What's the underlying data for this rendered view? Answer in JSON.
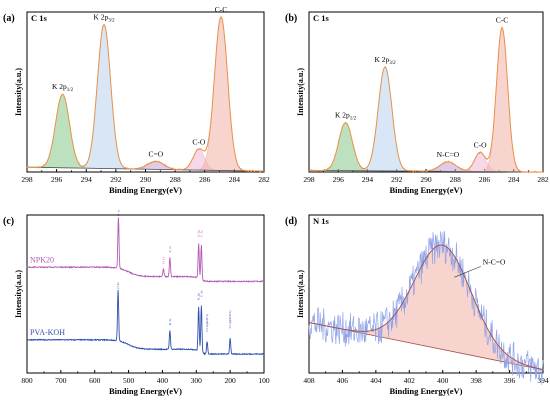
{
  "chart_data": [
    {
      "panel_label": "(a)",
      "type": "line",
      "inner_label": "C 1s",
      "xlabel": "Binding Energy(eV)",
      "ylabel": "Intensity(a.u.)",
      "xlim": [
        298,
        282
      ],
      "x_ticks": [
        "298",
        "296",
        "294",
        "292",
        "290",
        "288",
        "286",
        "284",
        "282"
      ],
      "ylim": [
        0,
        1
      ],
      "peaks": [
        {
          "label": "K 2p1/2",
          "center": 295.6,
          "fwhm": 1.1,
          "height": 0.46,
          "color": "#86c98a"
        },
        {
          "label": "K 2p3/2",
          "center": 292.8,
          "fwhm": 1.05,
          "height": 0.9,
          "color": "#b9d2ee"
        },
        {
          "label": "C=O",
          "center": 289.3,
          "fwhm": 1.3,
          "height": 0.05,
          "color": "#c7a2d6"
        },
        {
          "label": "C-O",
          "center": 286.4,
          "fwhm": 0.9,
          "height": 0.13,
          "color": "#f0b6d6"
        },
        {
          "label": "C-C",
          "center": 284.9,
          "fwhm": 1.05,
          "height": 0.96,
          "color": "#f3b0a6"
        }
      ],
      "baseline": [
        0.03,
        0.005
      ]
    },
    {
      "panel_label": "(b)",
      "type": "line",
      "inner_label": "C 1s",
      "xlabel": "Binding Energy(eV)",
      "ylabel": "Intensity(a.u.)",
      "xlim": [
        298,
        282
      ],
      "x_ticks": [
        "298",
        "296",
        "294",
        "292",
        "290",
        "288",
        "286",
        "284",
        "282"
      ],
      "ylim": [
        0,
        1
      ],
      "peaks": [
        {
          "label": "K 2p1/2",
          "center": 295.5,
          "fwhm": 1.1,
          "height": 0.3,
          "color": "#86c98a"
        },
        {
          "label": "K 2p3/2",
          "center": 292.8,
          "fwhm": 1.1,
          "height": 0.65,
          "color": "#b9d2ee"
        },
        {
          "label": "N-C=O",
          "center": 288.5,
          "fwhm": 1.3,
          "height": 0.06,
          "color": "#c7a2d6"
        },
        {
          "label": "C-O",
          "center": 286.3,
          "fwhm": 0.9,
          "height": 0.12,
          "color": "#f0b6d6"
        },
        {
          "label": "C-C",
          "center": 284.8,
          "fwhm": 0.9,
          "height": 0.9,
          "color": "#f3b0a6"
        }
      ],
      "baseline": [
        0.01,
        0.0
      ]
    },
    {
      "panel_label": "(c)",
      "type": "line",
      "xlabel": "Binding Energy(eV)",
      "ylabel": "Intensity(a.u.)",
      "xlim": [
        800,
        100
      ],
      "x_ticks": [
        "800",
        "700",
        "600",
        "500",
        "400",
        "300",
        "200",
        "100"
      ],
      "ylim": [
        0,
        1
      ],
      "series": [
        {
          "name": "NPK20",
          "color": "#b45ab4",
          "offset": 0.58,
          "peaks": [
            {
              "x": 530,
              "h": 0.32,
              "label": "O 1s"
            },
            {
              "x": 397,
              "h": 0.05,
              "label": "N 1s"
            },
            {
              "x": 378,
              "h": 0.12,
              "label": "K 2s"
            },
            {
              "x": 293,
              "h": 0.22,
              "label": "K 2p"
            },
            {
              "x": 285,
              "h": 0.22,
              "label": "C 1s"
            }
          ]
        },
        {
          "name": "PVA-KOH",
          "color": "#2f4fb0",
          "offset": 0.12,
          "peaks": [
            {
              "x": 531,
              "h": 0.32,
              "label": "O 1s"
            },
            {
              "x": 378,
              "h": 0.12,
              "label": "K 2s"
            },
            {
              "x": 293,
              "h": 0.28,
              "label": "K 2p"
            },
            {
              "x": 285,
              "h": 0.3,
              "label": "C 1s"
            },
            {
              "x": 268,
              "h": 0.08,
              "label": "Cl 2s(KSCl)"
            },
            {
              "x": 200,
              "h": 0.1,
              "label": "Cl 2p(KSCl)"
            }
          ]
        }
      ]
    },
    {
      "panel_label": "(d)",
      "type": "line",
      "inner_label": "N 1s",
      "xlabel": "Binding Energy(eV)",
      "ylabel": "Intensity(a.u.)",
      "xlim": [
        408,
        394
      ],
      "x_ticks": [
        "408",
        "406",
        "404",
        "402",
        "400",
        "398",
        "396",
        "394"
      ],
      "ylim": [
        0,
        1
      ],
      "peaks": [
        {
          "label": "N-C=O",
          "center": 400.0,
          "fwhm": 4.0,
          "height": 0.66,
          "color": "#f3b0a6"
        }
      ],
      "baseline": [
        0.32,
        0.02
      ]
    }
  ]
}
